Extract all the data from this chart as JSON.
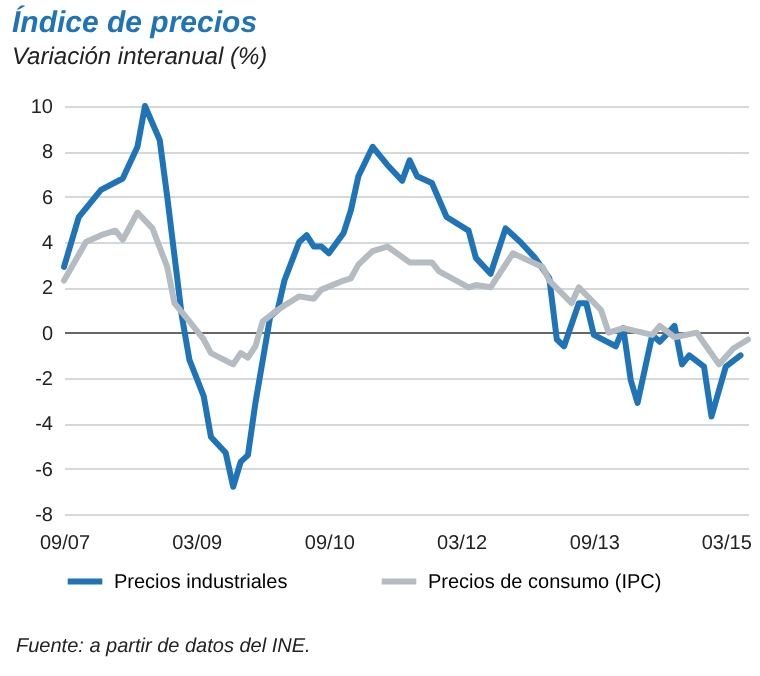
{
  "chart_data": {
    "type": "line",
    "title": "Índice de precios",
    "subtitle": "Variación interanual (%)",
    "annotations": [
      "Fuente: a partir de datos del INE."
    ],
    "xlim": [
      "2007-09",
      "2015-06"
    ],
    "xticks": [
      {
        "value": "2007-09",
        "label": "09/07"
      },
      {
        "value": "2009-03",
        "label": "03/09"
      },
      {
        "value": "2010-09",
        "label": "09/10"
      },
      {
        "value": "2012-03",
        "label": "03/12"
      },
      {
        "value": "2013-09",
        "label": "09/13"
      },
      {
        "value": "2015-03",
        "label": "03/15"
      }
    ],
    "ylim": [
      -8,
      10
    ],
    "yticks": [
      -8,
      -6,
      -4,
      -2,
      0,
      2,
      4,
      6,
      8,
      10
    ],
    "grid": "y",
    "legend": "bottom",
    "marker": "none",
    "line_style": "solid",
    "series": [
      {
        "name": "Precios industriales",
        "color": "#1f74b8",
        "x": [
          "2007-09",
          "2007-11",
          "2008-02",
          "2008-05",
          "2008-07",
          "2008-08",
          "2008-10",
          "2008-11",
          "2009-01",
          "2009-02",
          "2009-04",
          "2009-05",
          "2009-07",
          "2009-08",
          "2009-09",
          "2009-10",
          "2009-11",
          "2010-01",
          "2010-02",
          "2010-03",
          "2010-05",
          "2010-06",
          "2010-07",
          "2010-08",
          "2010-09",
          "2010-11",
          "2010-12",
          "2011-01",
          "2011-03",
          "2011-05",
          "2011-07",
          "2011-08",
          "2011-09",
          "2011-11",
          "2012-01",
          "2012-04",
          "2012-05",
          "2012-07",
          "2012-09",
          "2012-11",
          "2013-01",
          "2013-03",
          "2013-04",
          "2013-05",
          "2013-07",
          "2013-08",
          "2013-09",
          "2013-12",
          "2014-01",
          "2014-02",
          "2014-03",
          "2014-05",
          "2014-06",
          "2014-08",
          "2014-09",
          "2014-10",
          "2014-12",
          "2015-01",
          "2015-03",
          "2015-05"
        ],
        "values": [
          2.9,
          5.1,
          6.3,
          6.8,
          8.2,
          10.0,
          8.5,
          6.0,
          0.7,
          -1.2,
          -2.8,
          -4.6,
          -5.3,
          -6.8,
          -5.7,
          -5.4,
          -3.1,
          0.7,
          1.0,
          2.3,
          4.0,
          4.3,
          3.8,
          3.8,
          3.5,
          4.4,
          5.4,
          6.9,
          8.2,
          7.4,
          6.7,
          7.6,
          6.9,
          6.6,
          5.1,
          4.5,
          3.3,
          2.6,
          4.6,
          4.0,
          3.3,
          2.4,
          -0.3,
          -0.6,
          1.3,
          1.3,
          -0.1,
          -0.6,
          0.2,
          -2.1,
          -3.1,
          -0.1,
          -0.4,
          0.3,
          -1.4,
          -1.0,
          -1.5,
          -3.7,
          -1.5,
          -1.0
        ]
      },
      {
        "name": "Precios de consumo (IPC)",
        "color": "#b4bcc2",
        "x": [
          "2007-09",
          "2007-12",
          "2008-02",
          "2008-04",
          "2008-05",
          "2008-07",
          "2008-09",
          "2008-11",
          "2008-12",
          "2009-02",
          "2009-04",
          "2009-05",
          "2009-08",
          "2009-09",
          "2009-10",
          "2009-11",
          "2009-12",
          "2010-02",
          "2010-03",
          "2010-05",
          "2010-07",
          "2010-08",
          "2010-11",
          "2010-12",
          "2011-01",
          "2011-03",
          "2011-05",
          "2011-08",
          "2011-11",
          "2011-12",
          "2012-04",
          "2012-05",
          "2012-07",
          "2012-10",
          "2013-02",
          "2013-03",
          "2013-06",
          "2013-07",
          "2013-10",
          "2013-11",
          "2014-01",
          "2014-05",
          "2014-06",
          "2014-08",
          "2014-11",
          "2015-02",
          "2015-04",
          "2015-06"
        ],
        "values": [
          2.3,
          4.0,
          4.3,
          4.5,
          4.1,
          5.3,
          4.6,
          2.9,
          1.3,
          0.5,
          -0.3,
          -0.9,
          -1.4,
          -0.9,
          -1.1,
          -0.6,
          0.5,
          1.0,
          1.2,
          1.6,
          1.5,
          1.9,
          2.3,
          2.4,
          3.0,
          3.6,
          3.8,
          3.1,
          3.1,
          2.7,
          2.0,
          2.1,
          2.0,
          3.5,
          2.9,
          2.3,
          1.3,
          2.0,
          1.0,
          0.0,
          0.2,
          -0.1,
          0.3,
          -0.2,
          0.0,
          -1.4,
          -0.7,
          -0.3
        ]
      }
    ]
  }
}
